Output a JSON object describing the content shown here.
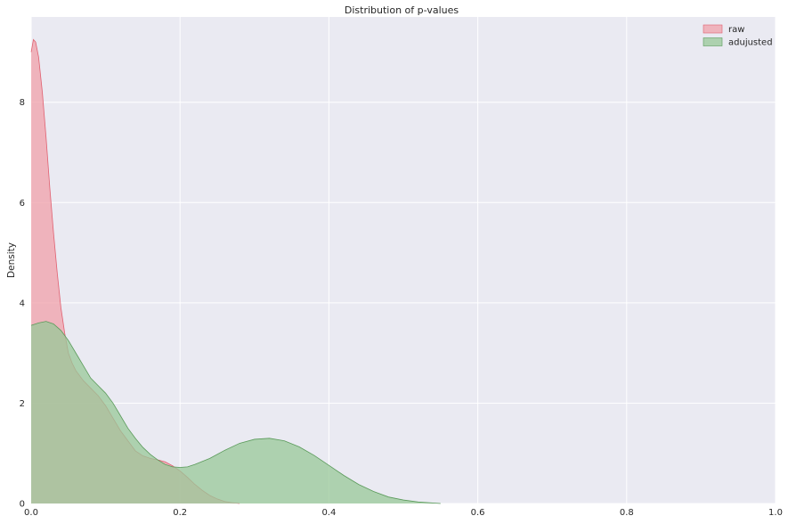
{
  "chart_data": {
    "type": "area",
    "title": "Distribution of p-values",
    "xlabel": "",
    "ylabel": "Density",
    "xlim": [
      0.0,
      1.0
    ],
    "ylim": [
      0,
      9.7
    ],
    "xticks": [
      "0.0",
      "0.2",
      "0.4",
      "0.6",
      "0.8",
      "1.0"
    ],
    "yticks": [
      "0",
      "2",
      "4",
      "6",
      "8"
    ],
    "grid": true,
    "legend_position": "top-right",
    "series": [
      {
        "name": "raw",
        "fill": "#f0a0aa",
        "stroke": "#e06070",
        "x": [
          0.0,
          0.003,
          0.006,
          0.01,
          0.015,
          0.02,
          0.025,
          0.03,
          0.035,
          0.04,
          0.045,
          0.05,
          0.055,
          0.06,
          0.07,
          0.08,
          0.09,
          0.1,
          0.11,
          0.12,
          0.13,
          0.14,
          0.15,
          0.16,
          0.17,
          0.18,
          0.19,
          0.2,
          0.21,
          0.22,
          0.23,
          0.24,
          0.25,
          0.26,
          0.27,
          0.28
        ],
        "y": [
          9.0,
          9.25,
          9.2,
          8.9,
          8.2,
          7.3,
          6.3,
          5.4,
          4.6,
          3.9,
          3.4,
          3.0,
          2.8,
          2.65,
          2.45,
          2.3,
          2.15,
          1.95,
          1.7,
          1.45,
          1.25,
          1.05,
          0.95,
          0.9,
          0.87,
          0.83,
          0.75,
          0.65,
          0.52,
          0.38,
          0.26,
          0.16,
          0.09,
          0.04,
          0.015,
          0.0
        ]
      },
      {
        "name": "adujusted",
        "fill": "#98c898",
        "stroke": "#5a9a5a",
        "x": [
          0.0,
          0.01,
          0.02,
          0.03,
          0.04,
          0.05,
          0.06,
          0.07,
          0.08,
          0.09,
          0.1,
          0.11,
          0.12,
          0.13,
          0.14,
          0.15,
          0.16,
          0.17,
          0.18,
          0.19,
          0.2,
          0.21,
          0.22,
          0.24,
          0.26,
          0.28,
          0.3,
          0.32,
          0.34,
          0.36,
          0.38,
          0.4,
          0.42,
          0.44,
          0.46,
          0.48,
          0.5,
          0.52,
          0.55
        ],
        "y": [
          3.55,
          3.6,
          3.63,
          3.58,
          3.45,
          3.25,
          3.0,
          2.75,
          2.5,
          2.35,
          2.2,
          2.0,
          1.75,
          1.5,
          1.3,
          1.12,
          0.98,
          0.87,
          0.78,
          0.73,
          0.72,
          0.73,
          0.78,
          0.9,
          1.06,
          1.2,
          1.28,
          1.3,
          1.25,
          1.13,
          0.96,
          0.76,
          0.56,
          0.38,
          0.24,
          0.13,
          0.07,
          0.03,
          0.0
        ]
      }
    ]
  }
}
